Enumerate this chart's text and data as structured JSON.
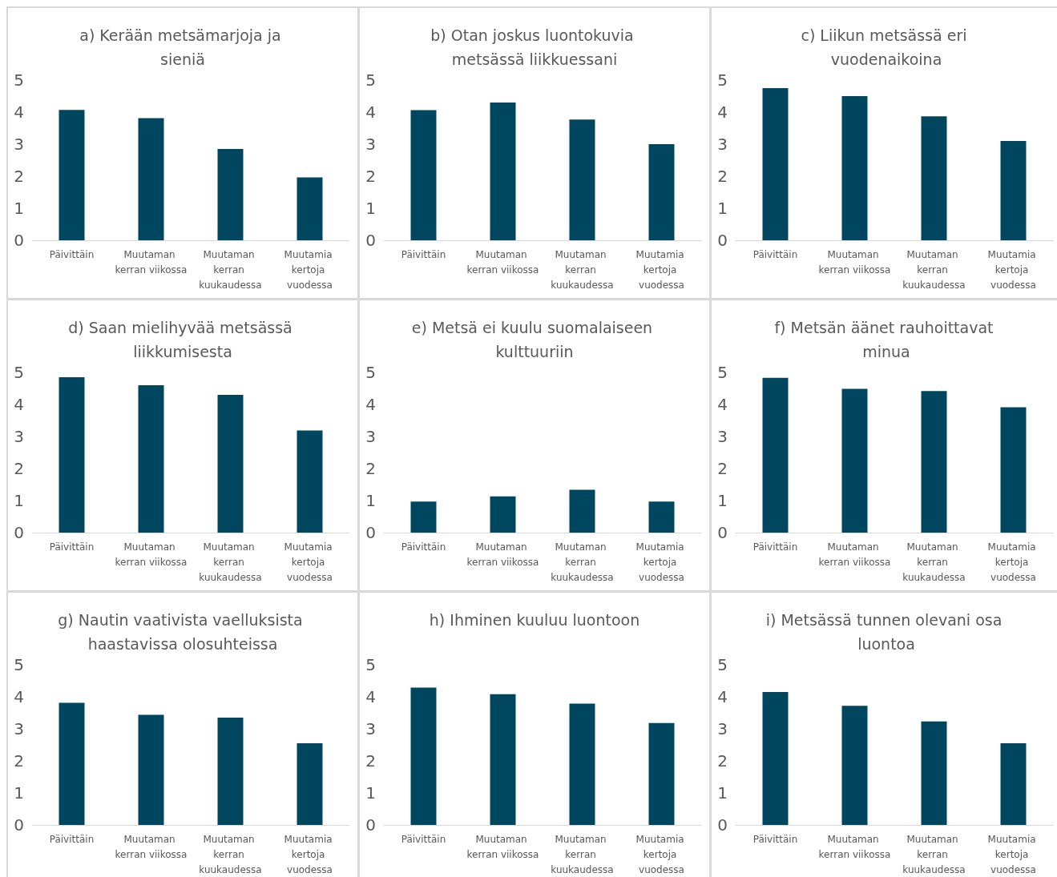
{
  "chart_data": [
    {
      "type": "bar",
      "title": "a) Kerään metsämarjoja ja sieniä",
      "categories": [
        "Päivittäin",
        "Muutaman kerran viikossa",
        "Muutaman kerran kuukaudessa",
        "Muutamia kertoja vuodessa"
      ],
      "values": [
        4.07,
        3.81,
        2.85,
        1.96
      ],
      "color": "#00465e",
      "ylim": [
        0,
        5
      ],
      "yticks": [
        0,
        1,
        2,
        3,
        4,
        5
      ]
    },
    {
      "type": "bar",
      "title": "b) Otan joskus luontokuvia metsässä liikkuessani",
      "categories": [
        "Päivittäin",
        "Muutaman kerran viikossa",
        "Muutaman kerran kuukaudessa",
        "Muutamia kertoja vuodessa"
      ],
      "values": [
        4.06,
        4.3,
        3.77,
        3.0
      ],
      "color": "#00465e",
      "ylim": [
        0,
        5
      ],
      "yticks": [
        0,
        1,
        2,
        3,
        4,
        5
      ]
    },
    {
      "type": "bar",
      "title": "c) Liikun metsässä eri vuodenaikoina",
      "categories": [
        "Päivittäin",
        "Muutaman kerran viikossa",
        "Muutaman kerran kuukaudessa",
        "Muutamia kertoja vuodessa"
      ],
      "values": [
        4.75,
        4.5,
        3.87,
        3.1
      ],
      "color": "#00465e",
      "ylim": [
        0,
        5
      ],
      "yticks": [
        0,
        1,
        2,
        3,
        4,
        5
      ]
    },
    {
      "type": "bar",
      "title": "d) Saan mielihyvää metsässä liikkumisesta",
      "categories": [
        "Päivittäin",
        "Muutaman kerran viikossa",
        "Muutaman kerran kuukaudessa",
        "Muutamia kertoja vuodessa"
      ],
      "values": [
        4.85,
        4.6,
        4.3,
        3.19
      ],
      "color": "#00465e",
      "ylim": [
        0,
        5
      ],
      "yticks": [
        0,
        1,
        2,
        3,
        4,
        5
      ]
    },
    {
      "type": "bar",
      "title": "e) Metsä ei kuulu suomalaiseen kulttuuriin",
      "categories": [
        "Päivittäin",
        "Muutaman kerran viikossa",
        "Muutaman kerran kuukaudessa",
        "Muutamia kertoja vuodessa"
      ],
      "values": [
        0.97,
        1.13,
        1.34,
        0.97
      ],
      "color": "#00465e",
      "ylim": [
        0,
        5
      ],
      "yticks": [
        0,
        1,
        2,
        3,
        4,
        5
      ]
    },
    {
      "type": "bar",
      "title": "f) Metsän äänet rauhoittavat minua",
      "categories": [
        "Päivittäin",
        "Muutaman kerran viikossa",
        "Muutaman kerran kuukaudessa",
        "Muutamia kertoja vuodessa"
      ],
      "values": [
        4.83,
        4.49,
        4.42,
        3.91
      ],
      "color": "#00465e",
      "ylim": [
        0,
        5
      ],
      "yticks": [
        0,
        1,
        2,
        3,
        4,
        5
      ]
    },
    {
      "type": "bar",
      "title": "g) Nautin vaativista vaelluksista haastavissa olosuhteissa",
      "categories": [
        "Päivittäin",
        "Muutaman kerran viikossa",
        "Muutaman kerran kuukaudessa",
        "Muutamia kertoja vuodessa"
      ],
      "values": [
        3.81,
        3.44,
        3.35,
        2.55
      ],
      "color": "#00465e",
      "ylim": [
        0,
        5
      ],
      "yticks": [
        0,
        1,
        2,
        3,
        4,
        5
      ]
    },
    {
      "type": "bar",
      "title": "h) Ihminen kuuluu luontoon",
      "categories": [
        "Päivittäin",
        "Muutaman kerran viikossa",
        "Muutaman kerran kuukaudessa",
        "Muutamia kertoja vuodessa"
      ],
      "values": [
        4.29,
        4.08,
        3.79,
        3.18
      ],
      "color": "#00465e",
      "ylim": [
        0,
        5
      ],
      "yticks": [
        0,
        1,
        2,
        3,
        4,
        5
      ]
    },
    {
      "type": "bar",
      "title": "i) Metsässä tunnen olevani osa luontoa",
      "categories": [
        "Päivittäin",
        "Muutaman kerran viikossa",
        "Muutaman kerran kuukaudessa",
        "Muutamia kertoja vuodessa"
      ],
      "values": [
        4.15,
        3.72,
        3.23,
        2.55
      ],
      "color": "#00465e",
      "ylim": [
        0,
        5
      ],
      "yticks": [
        0,
        1,
        2,
        3,
        4,
        5
      ]
    }
  ]
}
